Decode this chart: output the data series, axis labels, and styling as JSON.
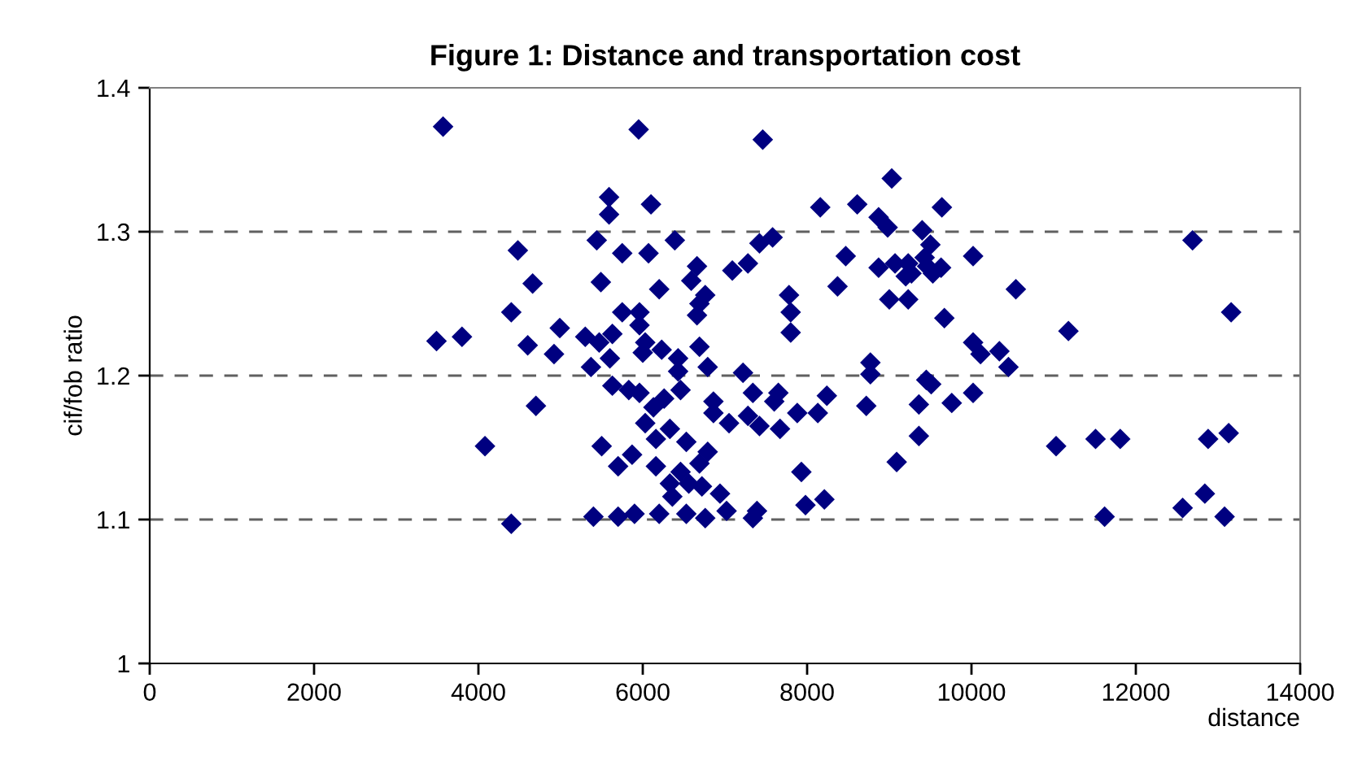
{
  "chart_data": {
    "type": "scatter",
    "title": "Figure 1: Distance and transportation cost",
    "xlabel": "distance",
    "ylabel": "cif/fob ratio",
    "xlim": [
      0,
      14000
    ],
    "xticks": [
      0,
      2000,
      4000,
      6000,
      8000,
      10000,
      12000,
      14000
    ],
    "ylim": [
      1,
      1.4
    ],
    "yticks": [
      1,
      1.1,
      1.2,
      1.3,
      1.4
    ],
    "grid": "y",
    "marker": "diamond",
    "series": [
      {
        "color": "#000080",
        "x": [
          3570,
          4480,
          4660,
          4400,
          3490,
          3800,
          4600,
          4700,
          4080,
          4400,
          5950,
          7460,
          9030,
          5590,
          5590,
          6100,
          8160,
          8610,
          8870,
          8980,
          9400,
          5440,
          5750,
          6070,
          6390,
          7420,
          7580,
          8470,
          8870,
          9070,
          9230,
          9200,
          9430,
          6660,
          6590,
          7090,
          7280,
          5490,
          6200,
          8370,
          6760,
          6690,
          6660,
          7780,
          7800,
          7800,
          9000,
          9230,
          5750,
          5960,
          4990,
          4920,
          5300,
          5470,
          5630,
          5600,
          5370,
          5960,
          6030,
          6000,
          6230,
          6430,
          6690,
          6790,
          6430,
          7220,
          8770,
          8770,
          5630,
          5830,
          5960,
          6460,
          6260,
          6130,
          6860,
          7340,
          7650,
          7600,
          8240,
          6860,
          7050,
          7280,
          7420,
          7670,
          7880,
          8130,
          8720,
          9360,
          6030,
          6330,
          6160,
          6530,
          5500,
          6790,
          6690,
          5870,
          5700,
          6160,
          6460,
          6330,
          6560,
          6720,
          6360,
          6940,
          7930,
          9360,
          9090,
          7980,
          8210,
          5400,
          5700,
          5900,
          6200,
          6530,
          6760,
          7020,
          7340,
          7390,
          9450,
          9640,
          9500,
          9460,
          9630,
          9530,
          9270,
          10020,
          10540,
          9670,
          10020,
          10110,
          10340,
          10450,
          11180,
          12690,
          13160,
          9510,
          9760,
          10020,
          11030,
          11510,
          11810,
          12880,
          13130,
          11620,
          12570,
          12840,
          13080
        ],
        "values": [
          1.373,
          1.287,
          1.264,
          1.244,
          1.224,
          1.227,
          1.221,
          1.179,
          1.151,
          1.097,
          1.371,
          1.364,
          1.337,
          1.324,
          1.312,
          1.319,
          1.317,
          1.319,
          1.31,
          1.303,
          1.301,
          1.294,
          1.285,
          1.285,
          1.294,
          1.292,
          1.296,
          1.283,
          1.275,
          1.278,
          1.278,
          1.269,
          1.282,
          1.276,
          1.266,
          1.273,
          1.278,
          1.265,
          1.26,
          1.262,
          1.256,
          1.25,
          1.242,
          1.256,
          1.244,
          1.23,
          1.253,
          1.253,
          1.244,
          1.244,
          1.233,
          1.215,
          1.227,
          1.223,
          1.229,
          1.212,
          1.206,
          1.235,
          1.223,
          1.216,
          1.218,
          1.212,
          1.22,
          1.206,
          1.203,
          1.202,
          1.209,
          1.201,
          1.193,
          1.19,
          1.188,
          1.19,
          1.184,
          1.178,
          1.182,
          1.188,
          1.188,
          1.182,
          1.186,
          1.174,
          1.167,
          1.172,
          1.165,
          1.163,
          1.174,
          1.174,
          1.179,
          1.18,
          1.167,
          1.163,
          1.156,
          1.154,
          1.151,
          1.147,
          1.139,
          1.145,
          1.137,
          1.137,
          1.133,
          1.125,
          1.125,
          1.123,
          1.116,
          1.118,
          1.133,
          1.158,
          1.14,
          1.11,
          1.114,
          1.102,
          1.102,
          1.104,
          1.104,
          1.104,
          1.101,
          1.106,
          1.101,
          1.106,
          1.197,
          1.317,
          1.291,
          1.276,
          1.275,
          1.271,
          1.271,
          1.283,
          1.26,
          1.24,
          1.223,
          1.215,
          1.217,
          1.206,
          1.231,
          1.294,
          1.244,
          1.194,
          1.181,
          1.188,
          1.151,
          1.156,
          1.156,
          1.156,
          1.16,
          1.102,
          1.108,
          1.118,
          1.102
        ]
      }
    ]
  }
}
